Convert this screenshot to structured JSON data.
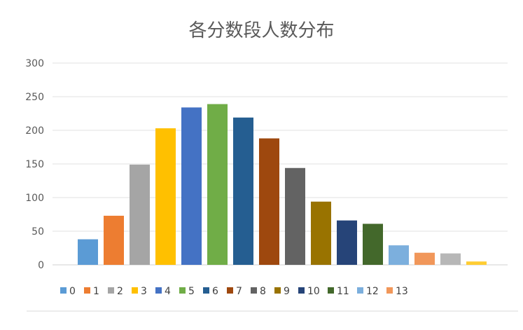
{
  "chart_data": {
    "type": "bar",
    "title": "各分数段人数分布",
    "xlabel": "",
    "ylabel": "",
    "ylim": [
      0,
      300
    ],
    "yticks": [
      0,
      50,
      100,
      150,
      200,
      250,
      300
    ],
    "grid": true,
    "legend_position": "bottom",
    "series": [
      {
        "name": "0",
        "value": 38,
        "color": "#5B9BD5"
      },
      {
        "name": "1",
        "value": 73,
        "color": "#ED7D31"
      },
      {
        "name": "2",
        "value": 149,
        "color": "#A5A5A5"
      },
      {
        "name": "3",
        "value": 203,
        "color": "#FFC000"
      },
      {
        "name": "4",
        "value": 234,
        "color": "#4472C4"
      },
      {
        "name": "5",
        "value": 239,
        "color": "#70AD47"
      },
      {
        "name": "6",
        "value": 219,
        "color": "#255E91"
      },
      {
        "name": "7",
        "value": 188,
        "color": "#9E480E"
      },
      {
        "name": "8",
        "value": 144,
        "color": "#636363"
      },
      {
        "name": "9",
        "value": 94,
        "color": "#997300"
      },
      {
        "name": "10",
        "value": 66,
        "color": "#264478"
      },
      {
        "name": "11",
        "value": 61,
        "color": "#43682B"
      },
      {
        "name": "12",
        "value": 29,
        "color": "#7CAFDD"
      },
      {
        "name": "13",
        "value": 18,
        "color": "#F1975A"
      },
      {
        "name": "",
        "value": 17,
        "color": "#B7B7B7"
      },
      {
        "name": "",
        "value": 5,
        "color": "#FFCD33"
      }
    ]
  }
}
